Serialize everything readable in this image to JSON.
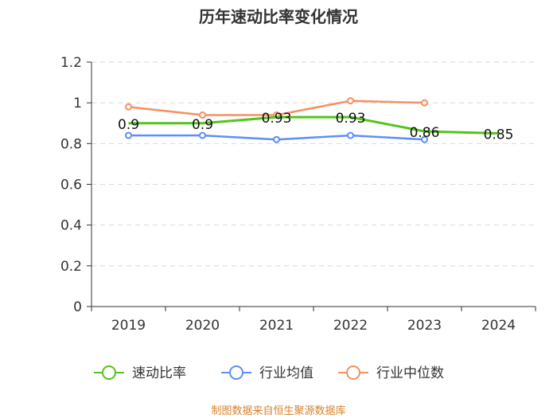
{
  "chart_data": {
    "type": "line",
    "title": "历年速动比率变化情况",
    "categories": [
      "2019",
      "2020",
      "2021",
      "2022",
      "2023",
      "2024"
    ],
    "ylim": [
      0,
      1.2
    ],
    "yticks": [
      "0",
      "0.2",
      "0.4",
      "0.6",
      "0.8",
      "1",
      "1.2"
    ],
    "grid": true,
    "legend_position": "bottom",
    "series": [
      {
        "name": "速动比率",
        "color": "#52c41a",
        "values": [
          0.9,
          0.9,
          0.93,
          0.93,
          0.86,
          0.85
        ],
        "labels": [
          "0.9",
          "0.9",
          "0.93",
          "0.93",
          "0.86",
          "0.85"
        ]
      },
      {
        "name": "行业均值",
        "color": "#5b8ff9",
        "values": [
          0.84,
          0.84,
          0.82,
          0.84,
          0.82,
          null
        ]
      },
      {
        "name": "行业中位数",
        "color": "#f6905e",
        "values": [
          0.98,
          0.94,
          0.94,
          1.01,
          1.0,
          null
        ]
      }
    ]
  },
  "source": "制图数据来自恒生聚源数据库"
}
